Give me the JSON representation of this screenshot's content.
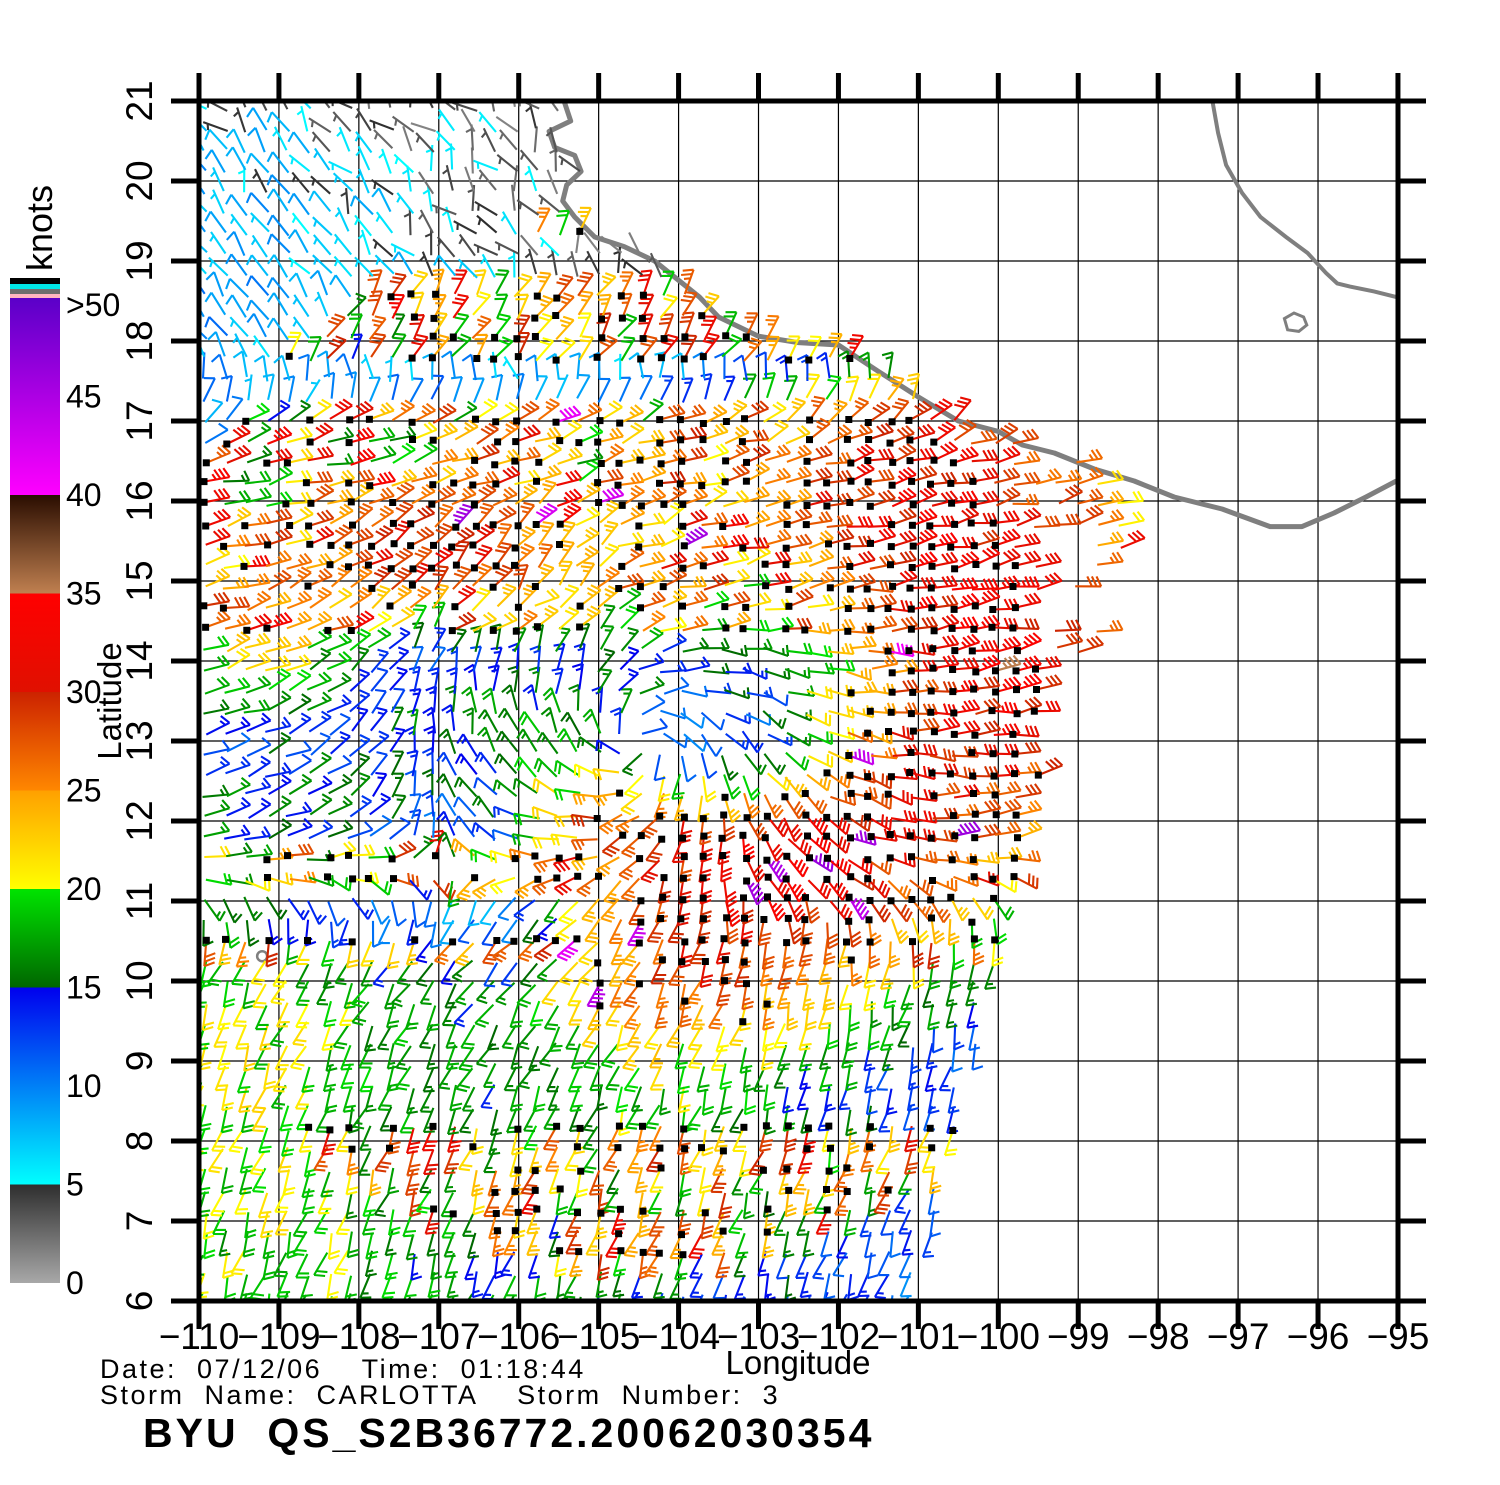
{
  "figure": {
    "title": "BYU  QS_S2B36772.20062030354",
    "info": {
      "line1": "Date:  07/12/06    Time:  01:18:44",
      "line2": "Storm  Name:  CARLOTTA    Storm  Number:  3",
      "date": "07/12/06",
      "time": "01:18:44",
      "storm_name": "CARLOTTA",
      "storm_number": "3"
    }
  },
  "axes": {
    "xlabel": "Longitude",
    "ylabel": "Latitude",
    "xtick_values": [
      -110,
      -109,
      -108,
      -107,
      -106,
      -105,
      -104,
      -103,
      -102,
      -101,
      -100,
      -99,
      -98,
      -97,
      -96,
      -95
    ],
    "xtick_labels": [
      "−110",
      "−109",
      "−108",
      "−107",
      "−106",
      "−105",
      "−104",
      "−103",
      "−102",
      "−101",
      "−100",
      "−99",
      "−98",
      "−97",
      "−96",
      "−95"
    ],
    "ytick_values": [
      6,
      7,
      8,
      9,
      10,
      11,
      12,
      13,
      14,
      15,
      16,
      17,
      18,
      19,
      20,
      21
    ],
    "ytick_labels": [
      "6",
      "7",
      "8",
      "9",
      "10",
      "11",
      "12",
      "13",
      "14",
      "15",
      "16",
      "17",
      "18",
      "19",
      "20",
      "21"
    ]
  },
  "colorbar": {
    "label": "knots",
    "ticks": [
      {
        "v": 50,
        "label": ">50"
      },
      {
        "v": 45,
        "label": "45"
      },
      {
        "v": 40,
        "label": "40"
      },
      {
        "v": 35,
        "label": "35"
      },
      {
        "v": 30,
        "label": "30"
      },
      {
        "v": 25,
        "label": "25"
      },
      {
        "v": 20,
        "label": "20"
      },
      {
        "v": 15,
        "label": "15"
      },
      {
        "v": 10,
        "label": "10"
      },
      {
        "v": 5,
        "label": "5"
      },
      {
        "v": 0,
        "label": "0"
      }
    ],
    "overflow_stripes_top_to_bottom": [
      "#000000",
      "#00e5e5",
      "#6e6e6e",
      "#ffb6c1"
    ],
    "bands": [
      {
        "from": 0,
        "to": 5,
        "c_from": "#a8a8a8",
        "c_to": "#2e2e2e"
      },
      {
        "from": 5,
        "to": 15,
        "c_from": "#00ffff",
        "c_to": "#0000ee"
      },
      {
        "from": 15,
        "to": 20,
        "c_from": "#006600",
        "c_to": "#00e400"
      },
      {
        "from": 20,
        "to": 25,
        "c_from": "#ffff00",
        "c_to": "#ffa000"
      },
      {
        "from": 25,
        "to": 30,
        "c_from": "#ff8700",
        "c_to": "#cc2200"
      },
      {
        "from": 30,
        "to": 35,
        "c_from": "#e01000",
        "c_to": "#ff0000"
      },
      {
        "from": 35,
        "to": 40,
        "c_from": "#c08050",
        "c_to": "#2a0d00"
      },
      {
        "from": 40,
        "to": 50,
        "c_from": "#ff00ff",
        "c_to": "#5a00c8"
      }
    ]
  },
  "chart_data": {
    "type": "wind_barb_map",
    "title": "BYU  QS_S2B36772.20062030354",
    "satellite_pass": "QS_S2B36772.20062030354",
    "date": "07/12/06",
    "time": "01:18:44",
    "storm_name": "CARLOTTA",
    "storm_number": 3,
    "units": "knots",
    "xlabel": "Longitude",
    "ylabel": "Latitude",
    "xlim": [
      -110,
      -95
    ],
    "ylim": [
      6,
      21
    ],
    "grid_step_deg": 1,
    "barb_spacing_deg": 0.26,
    "storm_center": {
      "lon": -104.5,
      "lat": 13.0
    },
    "wind_speed_grid_knots": {
      "lon_start": -110,
      "lon_step": 1,
      "lat_start": 21,
      "lat_step": -1,
      "values": [
        [
          7,
          6,
          4,
          3,
          3,
          3,
          3,
          3,
          3,
          3,
          3,
          3,
          3,
          3,
          3,
          3
        ],
        [
          8,
          7,
          6,
          4,
          3,
          3,
          3,
          3,
          3,
          3,
          3,
          3,
          3,
          3,
          3,
          3
        ],
        [
          9,
          8,
          7,
          5,
          4,
          3,
          3,
          3,
          3,
          3,
          3,
          3,
          3,
          3,
          3,
          3
        ],
        [
          9,
          8,
          8,
          7,
          5,
          4,
          4,
          3,
          3,
          3,
          3,
          3,
          3,
          3,
          3,
          3
        ],
        [
          9,
          8,
          9,
          10,
          10,
          12,
          16,
          22,
          28,
          30,
          29,
          26,
          20,
          18,
          18,
          18
        ],
        [
          9,
          14,
          26,
          28,
          24,
          22,
          22,
          26,
          30,
          32,
          30,
          26,
          18,
          15,
          15,
          15
        ],
        [
          24,
          27,
          29,
          30,
          28,
          24,
          20,
          22,
          28,
          33,
          32,
          28,
          20,
          15,
          12,
          12
        ],
        [
          20,
          22,
          14,
          12,
          13,
          16,
          14,
          14,
          22,
          30,
          33,
          30,
          22,
          16,
          12,
          12
        ],
        [
          12,
          13,
          14,
          16,
          18,
          16,
          10,
          12,
          24,
          30,
          32,
          30,
          24,
          16,
          12,
          12
        ],
        [
          16,
          16,
          14,
          12,
          14,
          28,
          30,
          32,
          32,
          30,
          26,
          22,
          14,
          10,
          10,
          10
        ],
        [
          16,
          15,
          12,
          9,
          10,
          22,
          30,
          32,
          30,
          26,
          20,
          14,
          10,
          10,
          10,
          10
        ],
        [
          20,
          20,
          18,
          16,
          16,
          24,
          28,
          26,
          22,
          17,
          13,
          11,
          9,
          9,
          9,
          9
        ],
        [
          20,
          20,
          18,
          16,
          16,
          18,
          20,
          18,
          16,
          13,
          11,
          10,
          9,
          9,
          9,
          9
        ],
        [
          20,
          20,
          18,
          16,
          16,
          17,
          18,
          16,
          14,
          12,
          11,
          10,
          9,
          9,
          9,
          9
        ],
        [
          18,
          20,
          18,
          16,
          16,
          17,
          16,
          14,
          12,
          12,
          11,
          10,
          9,
          9,
          9,
          9
        ],
        [
          18,
          19,
          18,
          17,
          16,
          16,
          14,
          13,
          12,
          11,
          10,
          10,
          9,
          9,
          9,
          9
        ]
      ]
    },
    "swath_east_edge_lat_lon": [
      [
        6,
        -101.0
      ],
      [
        8,
        -100.6
      ],
      [
        10,
        -100.1
      ],
      [
        12,
        -99.6
      ],
      [
        14,
        -98.9
      ],
      [
        15.5,
        -98.3
      ],
      [
        16.9,
        -98.4
      ],
      [
        17.4,
        -99.8
      ],
      [
        17.8,
        -101.8
      ],
      [
        18.2,
        -103.3
      ],
      [
        21,
        -103.6
      ]
    ],
    "coastline_pacific_lon_lat": [
      [
        -105.45,
        21.05
      ],
      [
        -105.35,
        20.75
      ],
      [
        -105.62,
        20.62
      ],
      [
        -105.55,
        20.42
      ],
      [
        -105.3,
        20.32
      ],
      [
        -105.22,
        20.12
      ],
      [
        -105.4,
        19.95
      ],
      [
        -105.45,
        19.75
      ],
      [
        -105.3,
        19.55
      ],
      [
        -105.05,
        19.3
      ],
      [
        -104.68,
        19.18
      ],
      [
        -104.3,
        19.0
      ],
      [
        -103.74,
        18.55
      ],
      [
        -103.5,
        18.3
      ],
      [
        -103.0,
        18.06
      ],
      [
        -102.5,
        17.98
      ],
      [
        -102.0,
        17.95
      ],
      [
        -101.5,
        17.62
      ],
      [
        -101.0,
        17.3
      ],
      [
        -100.5,
        17.0
      ],
      [
        -100.0,
        16.87
      ],
      [
        -99.7,
        16.7
      ],
      [
        -99.3,
        16.6
      ],
      [
        -98.8,
        16.4
      ],
      [
        -98.3,
        16.25
      ],
      [
        -97.8,
        16.05
      ],
      [
        -97.2,
        15.9
      ],
      [
        -96.6,
        15.68
      ],
      [
        -96.2,
        15.68
      ],
      [
        -95.8,
        15.85
      ],
      [
        -95.4,
        16.05
      ],
      [
        -95.02,
        16.25
      ]
    ],
    "coastline_gulf_lon_lat": [
      [
        -97.33,
        21.05
      ],
      [
        -97.25,
        20.6
      ],
      [
        -97.15,
        20.2
      ],
      [
        -96.95,
        19.85
      ],
      [
        -96.72,
        19.55
      ],
      [
        -96.4,
        19.3
      ],
      [
        -96.13,
        19.1
      ],
      [
        -95.9,
        18.85
      ],
      [
        -95.76,
        18.72
      ],
      [
        -95.6,
        18.68
      ],
      [
        -95.3,
        18.62
      ],
      [
        -95.02,
        18.55
      ]
    ],
    "lake_outline_lon_lat": [
      [
        -96.42,
        18.28
      ],
      [
        -96.3,
        18.35
      ],
      [
        -96.18,
        18.3
      ],
      [
        -96.14,
        18.2
      ],
      [
        -96.24,
        18.12
      ],
      [
        -96.38,
        18.14
      ],
      [
        -96.42,
        18.28
      ]
    ],
    "island_lon_lat": {
      "lon": -109.21,
      "lat": 10.31
    },
    "legend_position": "left",
    "grid_on": true
  }
}
